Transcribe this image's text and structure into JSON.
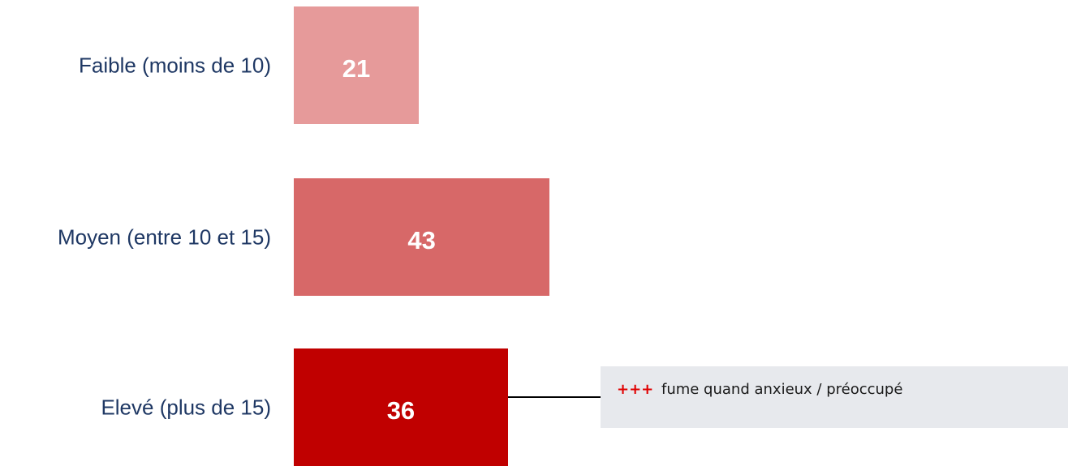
{
  "chart_data": {
    "type": "bar",
    "orientation": "horizontal",
    "categories": [
      "Faible (moins de 10)",
      "Moyen (entre 10 et 15)",
      "Elevé (plus de 15)"
    ],
    "values": [
      21,
      43,
      36
    ],
    "data_labels": [
      "21",
      "43",
      "36"
    ],
    "colors": [
      "#e69a9a",
      "#d76868",
      "#c00000"
    ],
    "title": "",
    "xlabel": "",
    "ylabel": "",
    "grid": false,
    "legend": "none",
    "annotations": [
      {
        "category": "Elevé (plus de 15)",
        "marker": "+++",
        "marker_color": "#e00000",
        "text": "fume quand anxieux / préoccupé",
        "background": "#e7e9ed"
      }
    ]
  }
}
